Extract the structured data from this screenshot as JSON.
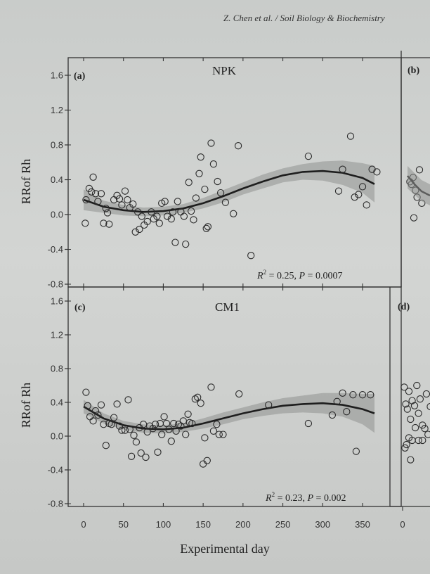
{
  "running_head": "Z. Chen et al. / Soil Biology & Biochemistry",
  "x_axis_title": "Experimental day",
  "x_ticks": [
    "0",
    "50",
    "100",
    "150",
    "200",
    "250",
    "300",
    "350"
  ],
  "right_x_tick": "0",
  "y_ticks": [
    "1.6",
    "1.2",
    "0.8",
    "0.4",
    "0.0",
    "-0.4",
    "-0.8"
  ],
  "chart_data": [
    {
      "type": "scatter",
      "panel": "(a)",
      "title": "NPK",
      "ylabel": "RRof Rh",
      "xlabel": "",
      "xlim": [
        -10,
        375
      ],
      "ylim": [
        -0.82,
        1.66
      ],
      "stat_r2": "0.25",
      "stat_p": "0.0007",
      "fit_curve": {
        "x": [
          0,
          25,
          50,
          75,
          100,
          125,
          150,
          175,
          200,
          225,
          250,
          275,
          300,
          325,
          350,
          365
        ],
        "y": [
          0.17,
          0.09,
          0.05,
          0.03,
          0.04,
          0.07,
          0.13,
          0.21,
          0.3,
          0.38,
          0.45,
          0.49,
          0.5,
          0.48,
          0.42,
          0.35
        ]
      },
      "fit_band": {
        "upper": [
          0.29,
          0.16,
          0.11,
          0.08,
          0.09,
          0.12,
          0.19,
          0.28,
          0.37,
          0.46,
          0.53,
          0.58,
          0.61,
          0.62,
          0.59,
          0.56
        ],
        "lower": [
          0.05,
          0.02,
          -0.01,
          -0.02,
          -0.01,
          0.02,
          0.07,
          0.14,
          0.23,
          0.3,
          0.37,
          0.4,
          0.39,
          0.34,
          0.25,
          0.14
        ]
      },
      "points": [
        [
          2,
          -0.1
        ],
        [
          3,
          0.17
        ],
        [
          7,
          0.3
        ],
        [
          10,
          0.26
        ],
        [
          12,
          0.43
        ],
        [
          15,
          0.24
        ],
        [
          18,
          0.15
        ],
        [
          22,
          0.24
        ],
        [
          25,
          -0.1
        ],
        [
          28,
          0.07
        ],
        [
          30,
          0.02
        ],
        [
          32,
          -0.11
        ],
        [
          38,
          0.17
        ],
        [
          42,
          0.22
        ],
        [
          45,
          0.18
        ],
        [
          48,
          0.11
        ],
        [
          52,
          0.27
        ],
        [
          55,
          0.17
        ],
        [
          58,
          0.08
        ],
        [
          62,
          0.12
        ],
        [
          65,
          -0.2
        ],
        [
          68,
          0.03
        ],
        [
          70,
          -0.17
        ],
        [
          73,
          -0.02
        ],
        [
          76,
          -0.12
        ],
        [
          80,
          -0.08
        ],
        [
          85,
          0.03
        ],
        [
          88,
          -0.05
        ],
        [
          92,
          -0.02
        ],
        [
          95,
          -0.1
        ],
        [
          98,
          0.13
        ],
        [
          102,
          0.15
        ],
        [
          105,
          -0.02
        ],
        [
          110,
          -0.05
        ],
        [
          112,
          0.03
        ],
        [
          115,
          -0.32
        ],
        [
          118,
          0.15
        ],
        [
          122,
          0.03
        ],
        [
          126,
          -0.02
        ],
        [
          128,
          -0.34
        ],
        [
          132,
          0.37
        ],
        [
          135,
          0.04
        ],
        [
          138,
          -0.06
        ],
        [
          141,
          0.19
        ],
        [
          145,
          0.47
        ],
        [
          147,
          0.66
        ],
        [
          152,
          0.29
        ],
        [
          154,
          -0.16
        ],
        [
          156,
          -0.14
        ],
        [
          160,
          0.82
        ],
        [
          163,
          0.58
        ],
        [
          168,
          0.38
        ],
        [
          172,
          0.25
        ],
        [
          178,
          0.14
        ],
        [
          188,
          0.01
        ],
        [
          194,
          0.79
        ],
        [
          210,
          -0.47
        ],
        [
          282,
          0.67
        ],
        [
          320,
          0.27
        ],
        [
          325,
          0.52
        ],
        [
          335,
          0.9
        ],
        [
          340,
          0.2
        ],
        [
          345,
          0.23
        ],
        [
          350,
          0.32
        ],
        [
          355,
          0.11
        ],
        [
          362,
          0.52
        ],
        [
          368,
          0.49
        ]
      ]
    },
    {
      "type": "scatter",
      "panel": "(c)",
      "title": "CM1",
      "ylabel": "RRof Rh",
      "xlabel": "Experimental day",
      "xlim": [
        -10,
        375
      ],
      "ylim": [
        -0.82,
        1.66
      ],
      "stat_r2": "0.23",
      "stat_p": "0.002",
      "fit_curve": {
        "x": [
          0,
          25,
          50,
          75,
          100,
          125,
          150,
          175,
          200,
          225,
          250,
          275,
          300,
          325,
          350,
          365
        ],
        "y": [
          0.35,
          0.21,
          0.13,
          0.09,
          0.08,
          0.1,
          0.15,
          0.21,
          0.27,
          0.32,
          0.36,
          0.38,
          0.39,
          0.37,
          0.32,
          0.27
        ]
      },
      "fit_band": {
        "upper": [
          0.43,
          0.27,
          0.18,
          0.14,
          0.13,
          0.15,
          0.21,
          0.28,
          0.34,
          0.4,
          0.45,
          0.48,
          0.51,
          0.51,
          0.5,
          0.5
        ],
        "lower": [
          0.27,
          0.15,
          0.08,
          0.04,
          0.03,
          0.05,
          0.09,
          0.14,
          0.2,
          0.24,
          0.27,
          0.28,
          0.27,
          0.23,
          0.14,
          0.04
        ]
      },
      "points": [
        [
          3,
          0.52
        ],
        [
          5,
          0.36
        ],
        [
          8,
          0.23
        ],
        [
          12,
          0.18
        ],
        [
          15,
          0.3
        ],
        [
          18,
          0.25
        ],
        [
          22,
          0.37
        ],
        [
          25,
          0.14
        ],
        [
          28,
          -0.11
        ],
        [
          32,
          0.15
        ],
        [
          35,
          0.14
        ],
        [
          38,
          0.22
        ],
        [
          42,
          0.38
        ],
        [
          45,
          0.12
        ],
        [
          48,
          0.07
        ],
        [
          52,
          0.07
        ],
        [
          56,
          0.43
        ],
        [
          58,
          0.08
        ],
        [
          60,
          -0.24
        ],
        [
          63,
          0.01
        ],
        [
          66,
          -0.07
        ],
        [
          70,
          0.1
        ],
        [
          72,
          -0.2
        ],
        [
          75,
          0.14
        ],
        [
          78,
          -0.25
        ],
        [
          80,
          0.05
        ],
        [
          83,
          0.12
        ],
        [
          87,
          0.09
        ],
        [
          90,
          0.14
        ],
        [
          93,
          -0.19
        ],
        [
          96,
          0.15
        ],
        [
          98,
          0.02
        ],
        [
          101,
          0.23
        ],
        [
          104,
          0.15
        ],
        [
          107,
          0.08
        ],
        [
          110,
          -0.06
        ],
        [
          113,
          0.15
        ],
        [
          116,
          0.06
        ],
        [
          119,
          0.14
        ],
        [
          122,
          0.12
        ],
        [
          125,
          0.18
        ],
        [
          128,
          0.02
        ],
        [
          131,
          0.26
        ],
        [
          133,
          0.16
        ],
        [
          136,
          0.15
        ],
        [
          140,
          0.44
        ],
        [
          143,
          0.46
        ],
        [
          147,
          0.39
        ],
        [
          150,
          -0.33
        ],
        [
          152,
          -0.02
        ],
        [
          155,
          -0.29
        ],
        [
          160,
          0.58
        ],
        [
          163,
          0.06
        ],
        [
          167,
          0.14
        ],
        [
          170,
          0.02
        ],
        [
          175,
          0.02
        ],
        [
          195,
          0.5
        ],
        [
          232,
          0.37
        ],
        [
          282,
          0.15
        ],
        [
          312,
          0.25
        ],
        [
          318,
          0.41
        ],
        [
          325,
          0.51
        ],
        [
          330,
          0.29
        ],
        [
          338,
          0.49
        ],
        [
          342,
          -0.18
        ],
        [
          350,
          0.49
        ],
        [
          360,
          0.49
        ]
      ]
    },
    {
      "type": "scatter",
      "panel": "(b)",
      "title": "",
      "points": [
        [
          3,
          0.3
        ],
        [
          5,
          0.27
        ],
        [
          7,
          0.35
        ],
        [
          10,
          0.2
        ],
        [
          12,
          0.12
        ],
        [
          15,
          0.44
        ],
        [
          18,
          0.05
        ],
        [
          8,
          -0.12
        ]
      ]
    },
    {
      "type": "scatter",
      "panel": "(d)",
      "title": "",
      "points": [
        [
          2,
          0.58
        ],
        [
          4,
          0.38
        ],
        [
          6,
          0.32
        ],
        [
          8,
          0.53
        ],
        [
          10,
          0.2
        ],
        [
          12,
          0.42
        ],
        [
          15,
          0.36
        ],
        [
          18,
          0.6
        ],
        [
          20,
          0.27
        ],
        [
          22,
          0.44
        ],
        [
          25,
          0.13
        ],
        [
          28,
          0.09
        ],
        [
          30,
          0.5
        ],
        [
          32,
          0.02
        ],
        [
          35,
          0.35
        ],
        [
          5,
          -0.1
        ],
        [
          8,
          -0.02
        ],
        [
          12,
          -0.05
        ],
        [
          16,
          0.1
        ],
        [
          20,
          -0.05
        ],
        [
          25,
          -0.05
        ],
        [
          10,
          -0.28
        ],
        [
          3,
          -0.14
        ]
      ]
    }
  ]
}
